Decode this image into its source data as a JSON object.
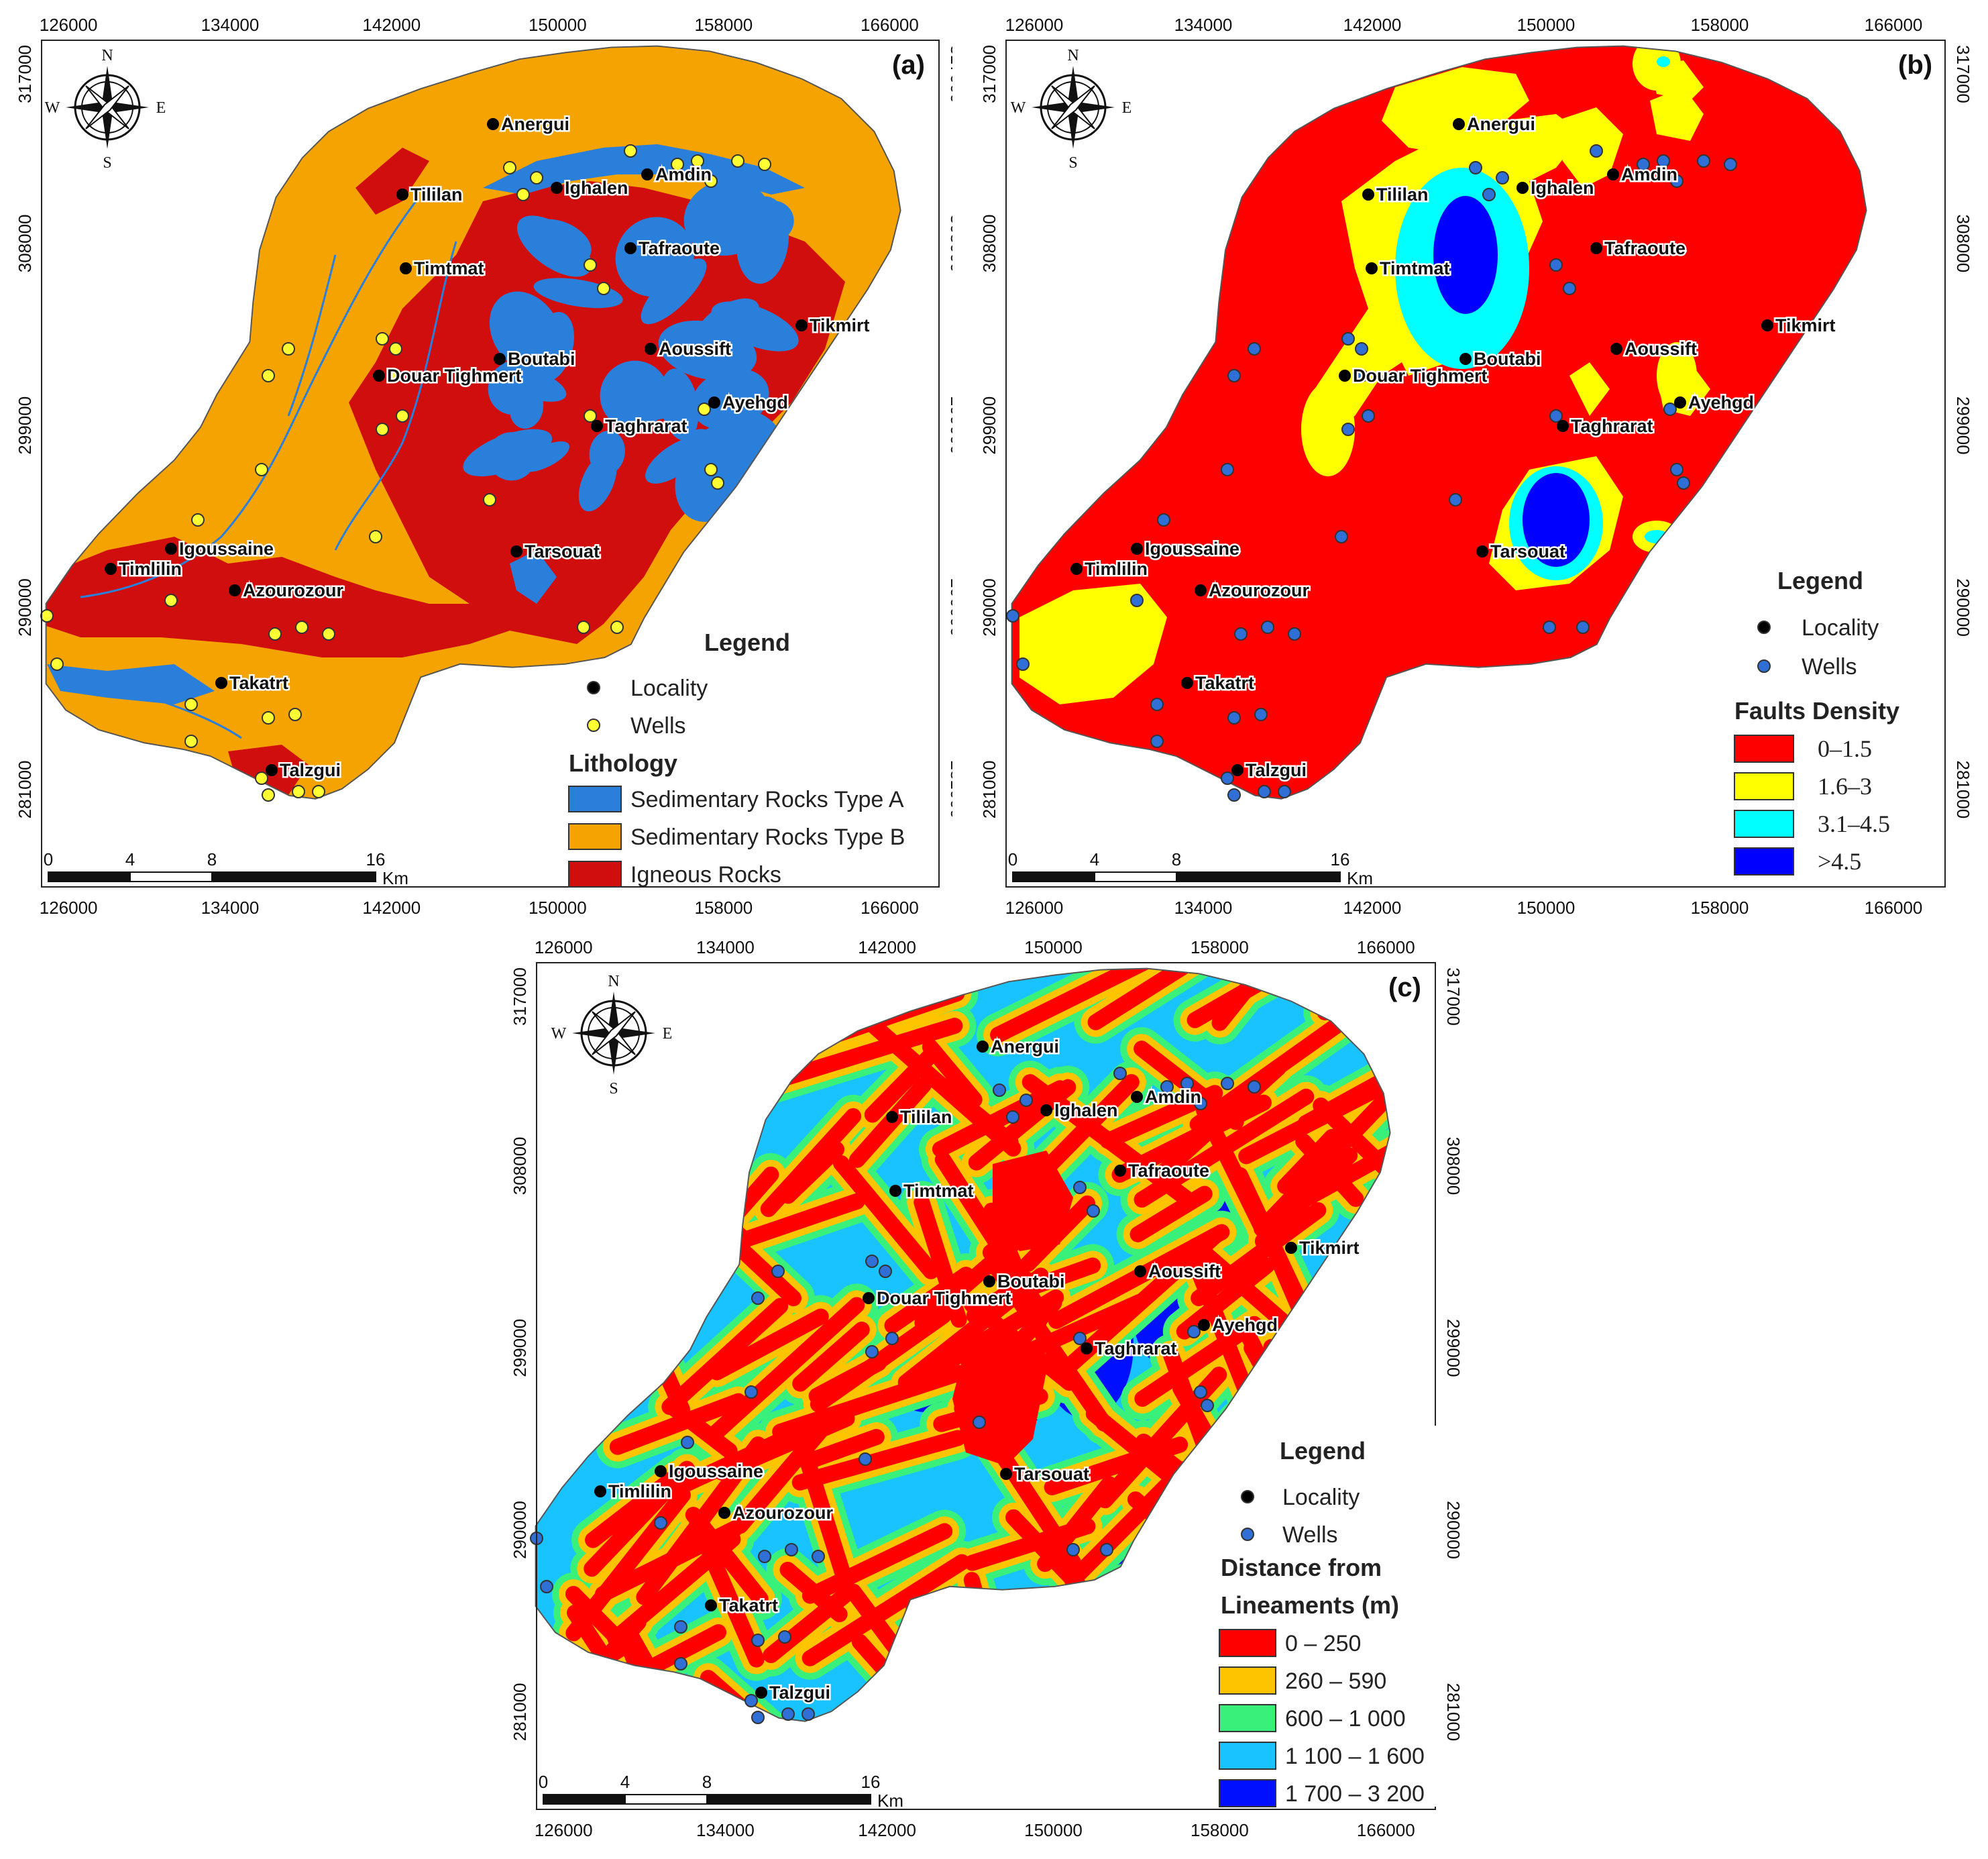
{
  "figure": {
    "panels": [
      {
        "id": "a",
        "label": "(a)",
        "x_ticks": [
          "126000",
          "134000",
          "142000",
          "150000",
          "158000",
          "166000"
        ],
        "y_ticks": [
          "317000",
          "308000",
          "299000",
          "290000",
          "281000"
        ],
        "compass": {
          "n": "N",
          "s": "S",
          "e": "E",
          "w": "W"
        },
        "scale": {
          "ticks": [
            "0",
            "4",
            "8",
            "16"
          ],
          "unit": "Km"
        },
        "legend": {
          "title": "Legend",
          "point_items": [
            {
              "label": "Locality",
              "color": "#000000"
            },
            {
              "label": "Wells",
              "color": "#ffff33"
            }
          ],
          "class_title": "Lithology",
          "classes": [
            {
              "label": "Sedimentary Rocks Type A",
              "color": "#2a7fdb"
            },
            {
              "label": "Sedimentary Rocks Type B",
              "color": "#f5a300"
            },
            {
              "label": "Igneous Rocks",
              "color": "#d10e0e"
            }
          ]
        }
      },
      {
        "id": "b",
        "label": "(b)",
        "x_ticks": [
          "126000",
          "134000",
          "142000",
          "150000",
          "158000",
          "166000"
        ],
        "y_ticks": [
          "317000",
          "308000",
          "299000",
          "290000",
          "281000"
        ],
        "compass": {
          "n": "N",
          "s": "S",
          "e": "E",
          "w": "W"
        },
        "scale": {
          "ticks": [
            "0",
            "4",
            "8",
            "16"
          ],
          "unit": "Km"
        },
        "legend": {
          "title": "Legend",
          "point_items": [
            {
              "label": "Locality",
              "color": "#000000"
            },
            {
              "label": "Wells",
              "color": "#2f6fd6"
            }
          ],
          "class_title": "Faults Density",
          "classes": [
            {
              "label": "0–1.5",
              "color": "#ff0000"
            },
            {
              "label": "1.6–3",
              "color": "#ffff00"
            },
            {
              "label": "3.1–4.5",
              "color": "#00ffff"
            },
            {
              "label": ">4.5",
              "color": "#0000ff"
            }
          ]
        }
      },
      {
        "id": "c",
        "label": "(c)",
        "x_ticks": [
          "126000",
          "134000",
          "142000",
          "150000",
          "158000",
          "166000"
        ],
        "y_ticks": [
          "317000",
          "308000",
          "299000",
          "290000",
          "281000"
        ],
        "compass": {
          "n": "N",
          "s": "S",
          "e": "E",
          "w": "W"
        },
        "scale": {
          "ticks": [
            "0",
            "4",
            "8",
            "16"
          ],
          "unit": "Km"
        },
        "legend": {
          "title": "Legend",
          "point_items": [
            {
              "label": "Locality",
              "color": "#000000"
            },
            {
              "label": "Wells",
              "color": "#2f6fd6"
            }
          ],
          "class_title_1": "Distance from",
          "class_title_2": "Lineaments (m)",
          "classes": [
            {
              "label": "0 – 250",
              "color": "#ff0000"
            },
            {
              "label": "260 – 590",
              "color": "#ffc400"
            },
            {
              "label": "600 – 1 000",
              "color": "#38f07a"
            },
            {
              "label": "1 100 – 1 600",
              "color": "#19c3ff"
            },
            {
              "label": "1 700 – 3 200",
              "color": "#0010ff"
            }
          ]
        }
      }
    ],
    "localities": [
      {
        "name": "Anergui"
      },
      {
        "name": "Amdin"
      },
      {
        "name": "Ighalen"
      },
      {
        "name": "Tililan"
      },
      {
        "name": "Tafraoute"
      },
      {
        "name": "Timtmat"
      },
      {
        "name": "Tikmirt"
      },
      {
        "name": "Aoussift"
      },
      {
        "name": "Boutabi"
      },
      {
        "name": "Douar Tighmert"
      },
      {
        "name": "Ayehgd"
      },
      {
        "name": "Taghrarat"
      },
      {
        "name": "Igoussaine"
      },
      {
        "name": "Timlilin"
      },
      {
        "name": "Azourozour"
      },
      {
        "name": "Tarsouat"
      },
      {
        "name": "Takatrt"
      },
      {
        "name": "Talzgui"
      }
    ]
  }
}
